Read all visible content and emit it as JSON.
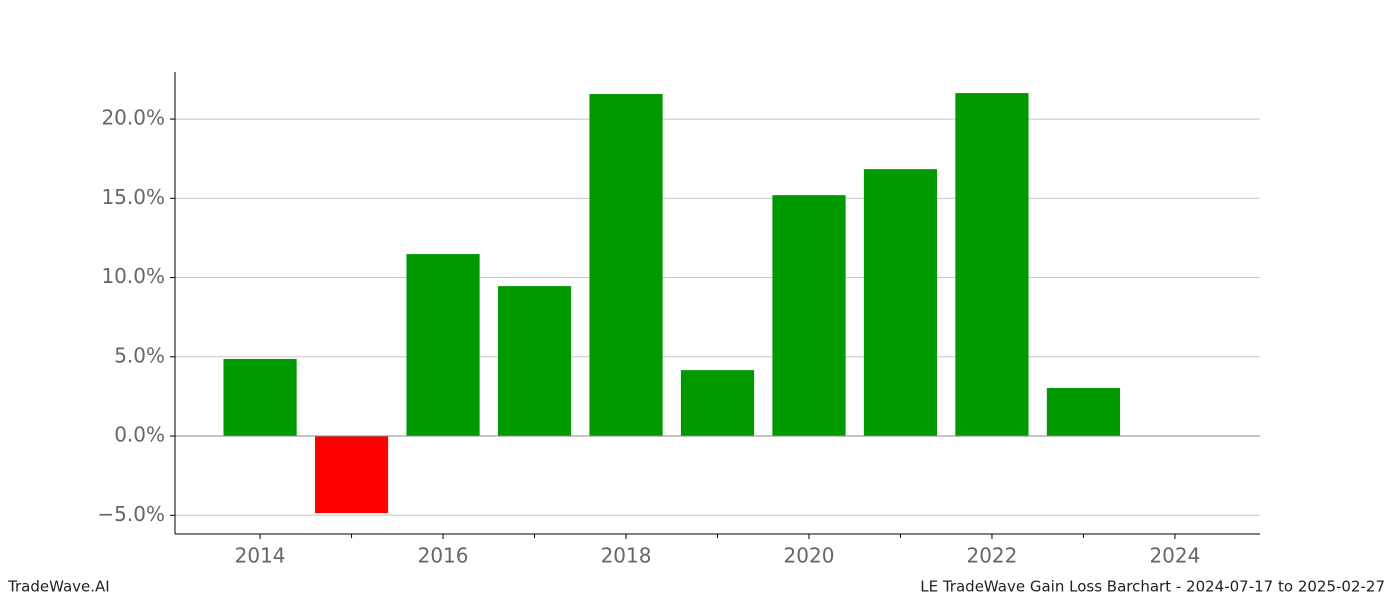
{
  "chart_data": {
    "type": "bar",
    "title": "LE TradeWave Gain Loss Barchart - 2024-07-17 to 2025-02-27",
    "watermark": "TradeWave.AI",
    "x": [
      2014,
      2015,
      2016,
      2017,
      2018,
      2019,
      2020,
      2021,
      2022,
      2023
    ],
    "values": [
      4.86,
      -4.86,
      11.48,
      9.46,
      21.58,
      4.16,
      15.2,
      16.84,
      21.64,
      3.03
    ],
    "colors": [
      "#009900",
      "#ff0000",
      "#009900",
      "#009900",
      "#009900",
      "#009900",
      "#009900",
      "#009900",
      "#009900",
      "#009900"
    ],
    "xlim": [
      2013.07,
      2024.93
    ],
    "xticks": [
      2014,
      2016,
      2018,
      2020,
      2022,
      2024
    ],
    "xminorticks": [
      2015,
      2017,
      2019,
      2021,
      2023
    ],
    "ylim": [
      -6.18,
      22.97
    ],
    "yticks": [
      {
        "value": -5,
        "label": "−5.0%"
      },
      {
        "value": 0,
        "label": "0.0%"
      },
      {
        "value": 5,
        "label": "5.0%"
      },
      {
        "value": 10,
        "label": "10.0%"
      },
      {
        "value": 15,
        "label": "15.0%"
      },
      {
        "value": 20,
        "label": "20.0%"
      }
    ],
    "grid": true
  }
}
